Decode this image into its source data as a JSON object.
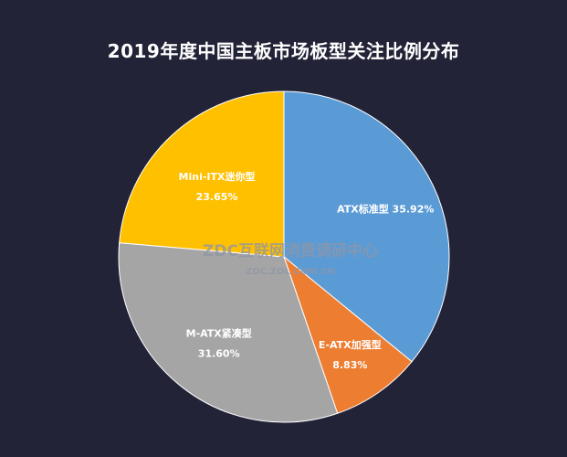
{
  "chart_data": {
    "type": "pie",
    "title": "2019年度中国主板市场板型关注比例分布",
    "categories": [
      "ATX标准型",
      "E-ATX加强型",
      "M-ATX紧凑型",
      "Mini-ITX迷你型"
    ],
    "values": [
      35.92,
      8.83,
      31.6,
      23.65
    ],
    "value_labels": [
      "35.92%",
      "8.83%",
      "31.60%",
      "23.65%"
    ],
    "colors": [
      "#5b9bd5",
      "#ed7d31",
      "#a5a5a5",
      "#ffc000"
    ],
    "start_angle": "12 o'clock",
    "direction": "clockwise",
    "legend": "none",
    "background": "#232338"
  },
  "watermark": {
    "main": "ZDC互联网消费调研中心",
    "sub": "ZDC.ZOL.COM.CN"
  }
}
